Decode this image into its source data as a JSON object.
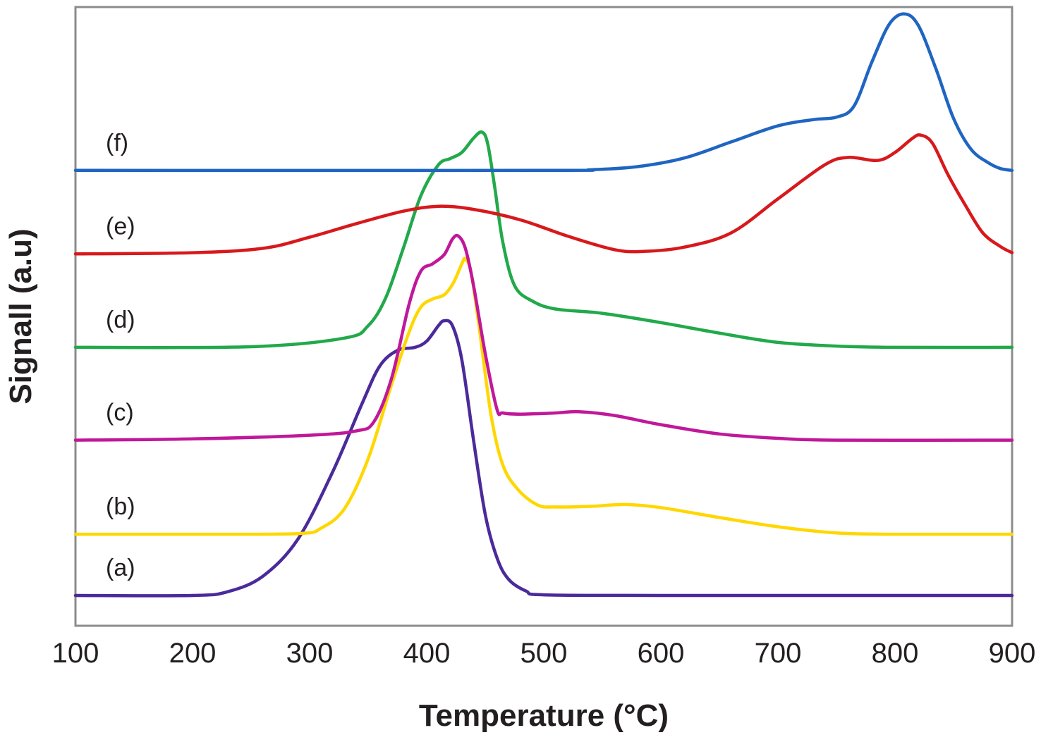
{
  "chart_data": {
    "type": "line",
    "title": "",
    "xlabel": "Temperature (°C)",
    "ylabel": "Signall (a.u)",
    "xlim": [
      100,
      900
    ],
    "ylim": [
      0,
      100
    ],
    "x_ticks": [
      100,
      200,
      300,
      400,
      500,
      600,
      700,
      800,
      900
    ],
    "y_ticks": [],
    "grid": false,
    "legend": "inline labels at left of each curve",
    "series": [
      {
        "name": "(a)",
        "color": "#4b2a9a",
        "points": [
          [
            100,
            4.9
          ],
          [
            200,
            4.9
          ],
          [
            230,
            5.5
          ],
          [
            260,
            8
          ],
          [
            290,
            14
          ],
          [
            320,
            25
          ],
          [
            345,
            36
          ],
          [
            360,
            42
          ],
          [
            375,
            44.5
          ],
          [
            390,
            45
          ],
          [
            400,
            46
          ],
          [
            410,
            48.5
          ],
          [
            415,
            49.3
          ],
          [
            422,
            48.5
          ],
          [
            430,
            43
          ],
          [
            440,
            30
          ],
          [
            450,
            18
          ],
          [
            460,
            11
          ],
          [
            470,
            7.5
          ],
          [
            485,
            5.6
          ],
          [
            500,
            5
          ],
          [
            600,
            4.9
          ],
          [
            900,
            4.9
          ]
        ]
      },
      {
        "name": "(b)",
        "color": "#ffd700",
        "points": [
          [
            100,
            14.8
          ],
          [
            200,
            14.8
          ],
          [
            290,
            14.9
          ],
          [
            310,
            15.8
          ],
          [
            330,
            19
          ],
          [
            350,
            27
          ],
          [
            370,
            39
          ],
          [
            385,
            47.5
          ],
          [
            395,
            51.5
          ],
          [
            405,
            52.8
          ],
          [
            415,
            53.5
          ],
          [
            423,
            55.5
          ],
          [
            430,
            58.5
          ],
          [
            433,
            59.3
          ],
          [
            438,
            57
          ],
          [
            445,
            48
          ],
          [
            455,
            34
          ],
          [
            465,
            26
          ],
          [
            478,
            22
          ],
          [
            495,
            19.5
          ],
          [
            510,
            19.2
          ],
          [
            540,
            19.3
          ],
          [
            570,
            19.6
          ],
          [
            600,
            19.1
          ],
          [
            650,
            17.5
          ],
          [
            700,
            16
          ],
          [
            750,
            15
          ],
          [
            800,
            14.8
          ],
          [
            900,
            14.8
          ]
        ]
      },
      {
        "name": "(c)",
        "color": "#c0189a",
        "points": [
          [
            100,
            30
          ],
          [
            200,
            30.2
          ],
          [
            300,
            30.8
          ],
          [
            340,
            31.5
          ],
          [
            355,
            33
          ],
          [
            370,
            40
          ],
          [
            385,
            52
          ],
          [
            395,
            57.3
          ],
          [
            405,
            58.5
          ],
          [
            415,
            60
          ],
          [
            422,
            62.5
          ],
          [
            427,
            63
          ],
          [
            433,
            61
          ],
          [
            440,
            55
          ],
          [
            450,
            44
          ],
          [
            460,
            35
          ],
          [
            465,
            34.4
          ],
          [
            480,
            34.2
          ],
          [
            510,
            34.4
          ],
          [
            530,
            34.6
          ],
          [
            560,
            34
          ],
          [
            600,
            32.5
          ],
          [
            650,
            31
          ],
          [
            700,
            30.3
          ],
          [
            750,
            30
          ],
          [
            900,
            30
          ]
        ]
      },
      {
        "name": "(d)",
        "color": "#22a94a",
        "points": [
          [
            100,
            45
          ],
          [
            250,
            45.1
          ],
          [
            330,
            46.5
          ],
          [
            350,
            48.5
          ],
          [
            365,
            53
          ],
          [
            380,
            61
          ],
          [
            395,
            69.5
          ],
          [
            410,
            74.5
          ],
          [
            420,
            75.5
          ],
          [
            430,
            76.5
          ],
          [
            440,
            78.8
          ],
          [
            447,
            79.8
          ],
          [
            452,
            78
          ],
          [
            458,
            71
          ],
          [
            465,
            62
          ],
          [
            475,
            55
          ],
          [
            490,
            52.5
          ],
          [
            510,
            51.2
          ],
          [
            550,
            50.5
          ],
          [
            600,
            49
          ],
          [
            650,
            47.3
          ],
          [
            700,
            45.8
          ],
          [
            750,
            45.2
          ],
          [
            800,
            45
          ],
          [
            900,
            45
          ]
        ]
      },
      {
        "name": "(e)",
        "color": "#d7191c",
        "points": [
          [
            100,
            60.1
          ],
          [
            200,
            60.3
          ],
          [
            260,
            61
          ],
          [
            300,
            62.8
          ],
          [
            340,
            65
          ],
          [
            380,
            67
          ],
          [
            410,
            67.8
          ],
          [
            440,
            67.3
          ],
          [
            480,
            65.6
          ],
          [
            520,
            63
          ],
          [
            560,
            60.8
          ],
          [
            585,
            60.5
          ],
          [
            620,
            61.2
          ],
          [
            660,
            63.5
          ],
          [
            700,
            69
          ],
          [
            740,
            74.5
          ],
          [
            760,
            75.7
          ],
          [
            785,
            75.2
          ],
          [
            800,
            76.5
          ],
          [
            815,
            78.8
          ],
          [
            822,
            79.3
          ],
          [
            832,
            78
          ],
          [
            845,
            73
          ],
          [
            860,
            68
          ],
          [
            875,
            63.5
          ],
          [
            890,
            61.3
          ],
          [
            900,
            60.3
          ]
        ]
      },
      {
        "name": "(f)",
        "color": "#1f65c1",
        "points": [
          [
            100,
            73.6
          ],
          [
            500,
            73.6
          ],
          [
            540,
            73.7
          ],
          [
            580,
            74.2
          ],
          [
            620,
            75.6
          ],
          [
            660,
            78.2
          ],
          [
            700,
            80.8
          ],
          [
            730,
            81.8
          ],
          [
            750,
            82.2
          ],
          [
            765,
            84
          ],
          [
            780,
            91
          ],
          [
            795,
            97.2
          ],
          [
            808,
            98.9
          ],
          [
            820,
            97
          ],
          [
            835,
            90
          ],
          [
            850,
            82
          ],
          [
            865,
            77
          ],
          [
            880,
            74.8
          ],
          [
            890,
            73.9
          ],
          [
            900,
            73.6
          ]
        ]
      }
    ]
  }
}
